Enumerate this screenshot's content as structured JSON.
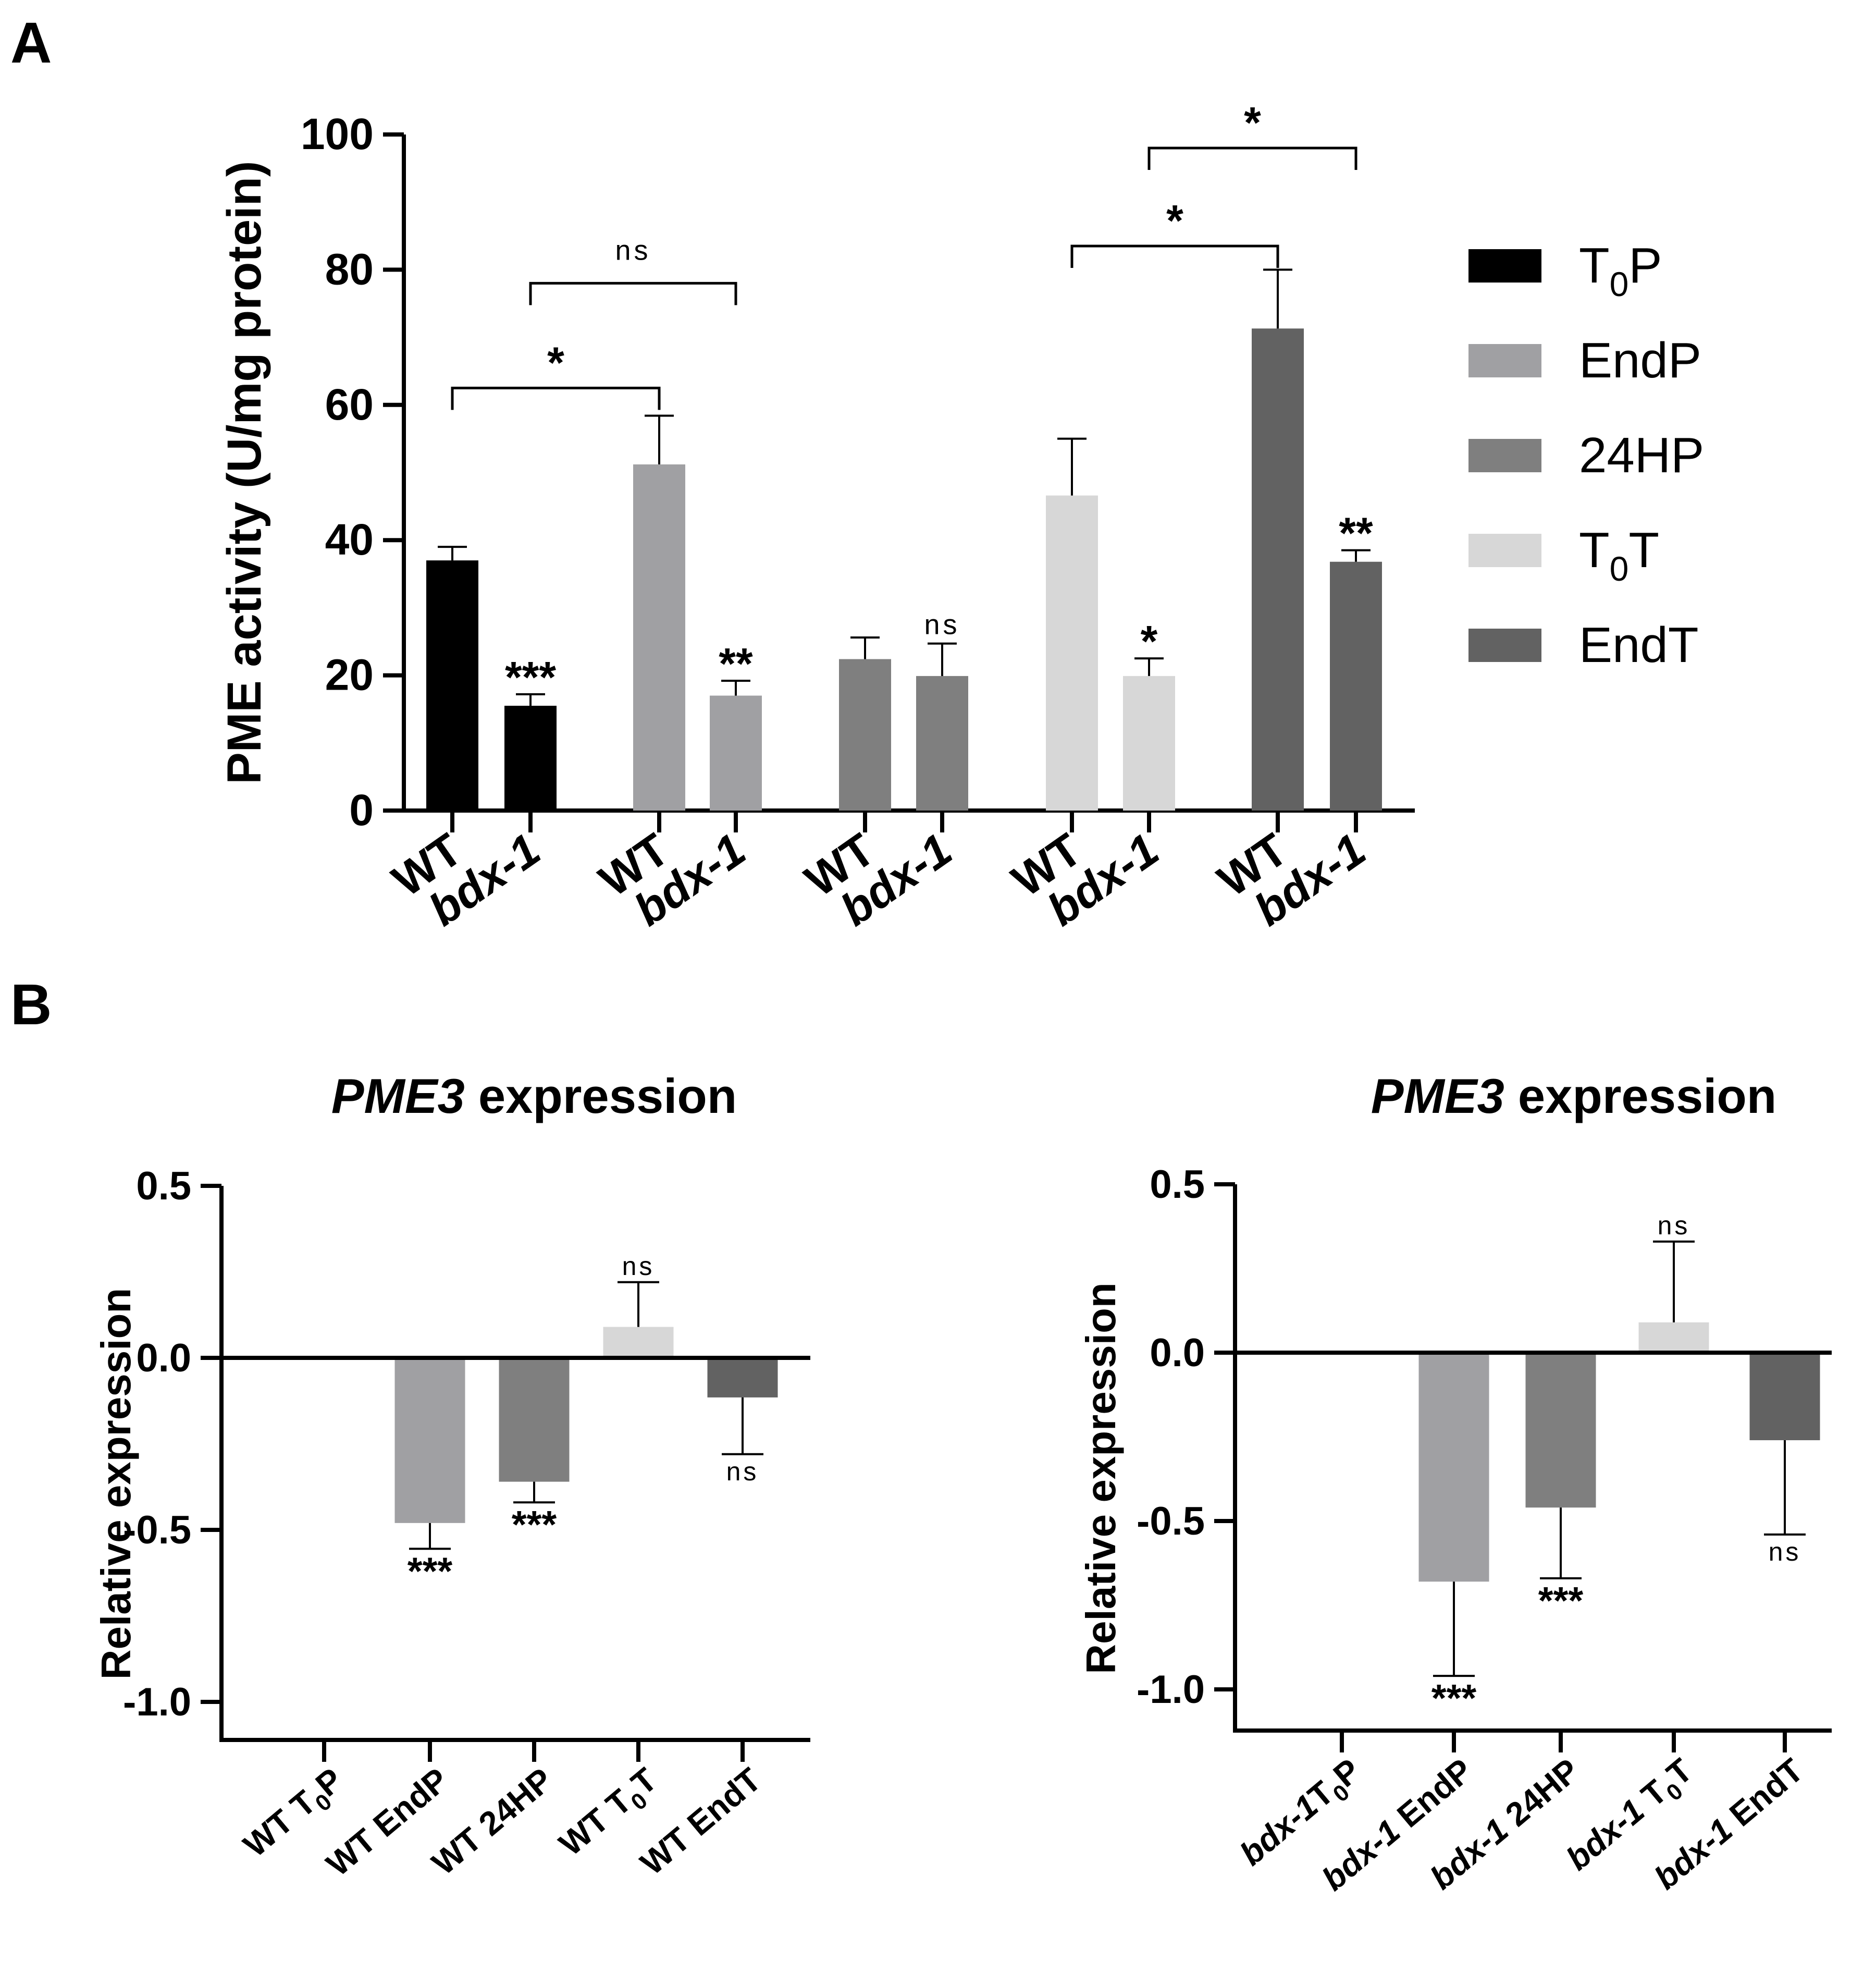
{
  "panel_labels": {
    "a": "A",
    "b": "B"
  },
  "chart_data": [
    {
      "id": "A",
      "type": "bar",
      "title": "",
      "xlabel": "",
      "ylabel": "PME activity (U/mg protein)",
      "ylim": [
        0,
        100
      ],
      "yticks": [
        "0",
        "20",
        "40",
        "60",
        "80",
        "100"
      ],
      "legend_position": "right",
      "legend": [
        {
          "key": "T0P",
          "base": "T",
          "sub": "0",
          "tail": "P",
          "color": "#000000"
        },
        {
          "key": "EndP",
          "base": "EndP",
          "sub": "",
          "tail": "",
          "color": "#a0a0a3"
        },
        {
          "key": "24HP",
          "base": "24HP",
          "sub": "",
          "tail": "",
          "color": "#7f7f7f"
        },
        {
          "key": "T0T",
          "base": "T",
          "sub": "0",
          "tail": "T",
          "color": "#d7d7d7"
        },
        {
          "key": "EndT",
          "base": "EndT",
          "sub": "",
          "tail": "",
          "color": "#626262"
        }
      ],
      "groups": [
        {
          "series": "T0P",
          "bars": [
            {
              "label": "WT",
              "italic": false,
              "value": 37,
              "error": 2,
              "sig": ""
            },
            {
              "label": "bdx-1",
              "italic": true,
              "value": 15.5,
              "error": 1.7,
              "sig": "***"
            }
          ]
        },
        {
          "series": "EndP",
          "bars": [
            {
              "label": "WT",
              "italic": false,
              "value": 51.2,
              "error": 7.2,
              "sig": ""
            },
            {
              "label": "bdx-1",
              "italic": true,
              "value": 17,
              "error": 2.2,
              "sig": "**"
            }
          ]
        },
        {
          "series": "24HP",
          "bars": [
            {
              "label": "WT",
              "italic": false,
              "value": 22.4,
              "error": 3.2,
              "sig": ""
            },
            {
              "label": "bdx-1",
              "italic": true,
              "value": 19.9,
              "error": 4.8,
              "sig": "ns"
            }
          ]
        },
        {
          "series": "T0T",
          "bars": [
            {
              "label": "WT",
              "italic": false,
              "value": 46.6,
              "error": 8.4,
              "sig": ""
            },
            {
              "label": "bdx-1",
              "italic": true,
              "value": 19.9,
              "error": 2.6,
              "sig": "*"
            }
          ]
        },
        {
          "series": "EndT",
          "bars": [
            {
              "label": "WT",
              "italic": false,
              "value": 71.3,
              "error": 8.7,
              "sig": ""
            },
            {
              "label": "bdx-1",
              "italic": true,
              "value": 36.8,
              "error": 1.7,
              "sig": "**"
            }
          ]
        }
      ],
      "comparisons": [
        {
          "from": [
            0,
            0
          ],
          "to": [
            1,
            0
          ],
          "level": 62.5,
          "label": "*"
        },
        {
          "from": [
            0,
            1
          ],
          "to": [
            1,
            1
          ],
          "level": 78,
          "label": "ns"
        },
        {
          "from": [
            3,
            0
          ],
          "to": [
            4,
            0
          ],
          "level": 83.5,
          "label": "*"
        },
        {
          "from": [
            3,
            1
          ],
          "to": [
            4,
            1
          ],
          "level": 98,
          "label": "*"
        }
      ]
    },
    {
      "id": "B-left",
      "type": "bar",
      "title": {
        "italic": "PME3",
        "rest": " expression"
      },
      "xlabel": "",
      "ylabel": "Relative expression",
      "ylim": [
        -1.1,
        0.5
      ],
      "yticks": [
        "0.5",
        "0.0",
        "-0.5",
        "-1.0"
      ],
      "categories": [
        {
          "a": "WT T",
          "sub": "0",
          "b": "P",
          "ai": false
        },
        {
          "a": "WT EndP",
          "sub": "",
          "b": "",
          "ai": false
        },
        {
          "a": "WT 24HP",
          "sub": "",
          "b": "",
          "ai": false
        },
        {
          "a": "WT T",
          "sub": "0",
          "b": "T",
          "ai": false
        },
        {
          "a": "WT EndT",
          "sub": "",
          "b": "",
          "ai": false
        }
      ],
      "values": [
        0,
        -0.48,
        -0.36,
        0.09,
        -0.115
      ],
      "errors": [
        0,
        0.075,
        0.06,
        0.13,
        0.165
      ],
      "sig": [
        "",
        "***",
        "***",
        "ns",
        "ns"
      ],
      "colors": [
        "#000000",
        "#a0a0a3",
        "#7f7f7f",
        "#d7d7d7",
        "#626262"
      ]
    },
    {
      "id": "B-right",
      "type": "bar",
      "title": {
        "italic": "PME3",
        "rest": " expression"
      },
      "xlabel": "",
      "ylabel": "Relative expression",
      "ylim": [
        -1.1,
        0.5
      ],
      "yticks": [
        "0.5",
        "0.0",
        "-0.5",
        "-1.0"
      ],
      "categories": [
        {
          "a": "bdx-1",
          "sub": "",
          "b": "T0P",
          "ai": true,
          "bsub": true
        },
        {
          "a": "bdx-1",
          "sub": "",
          "b": " EndP",
          "ai": true
        },
        {
          "a": "bdx-1",
          "sub": "",
          "b": " 24HP",
          "ai": true
        },
        {
          "a": "bdx-1",
          "sub": "",
          "b": " T0T",
          "ai": true,
          "bsub": true
        },
        {
          "a": "bdx-1",
          "sub": "",
          "b": " EndT",
          "ai": true
        }
      ],
      "values": [
        0,
        -0.68,
        -0.46,
        0.09,
        -0.26
      ],
      "errors": [
        0,
        0.28,
        0.21,
        0.24,
        0.28
      ],
      "sig": [
        "",
        "***",
        "***",
        "ns",
        "ns"
      ],
      "colors": [
        "#000000",
        "#a0a0a3",
        "#7f7f7f",
        "#d7d7d7",
        "#626262"
      ]
    }
  ]
}
